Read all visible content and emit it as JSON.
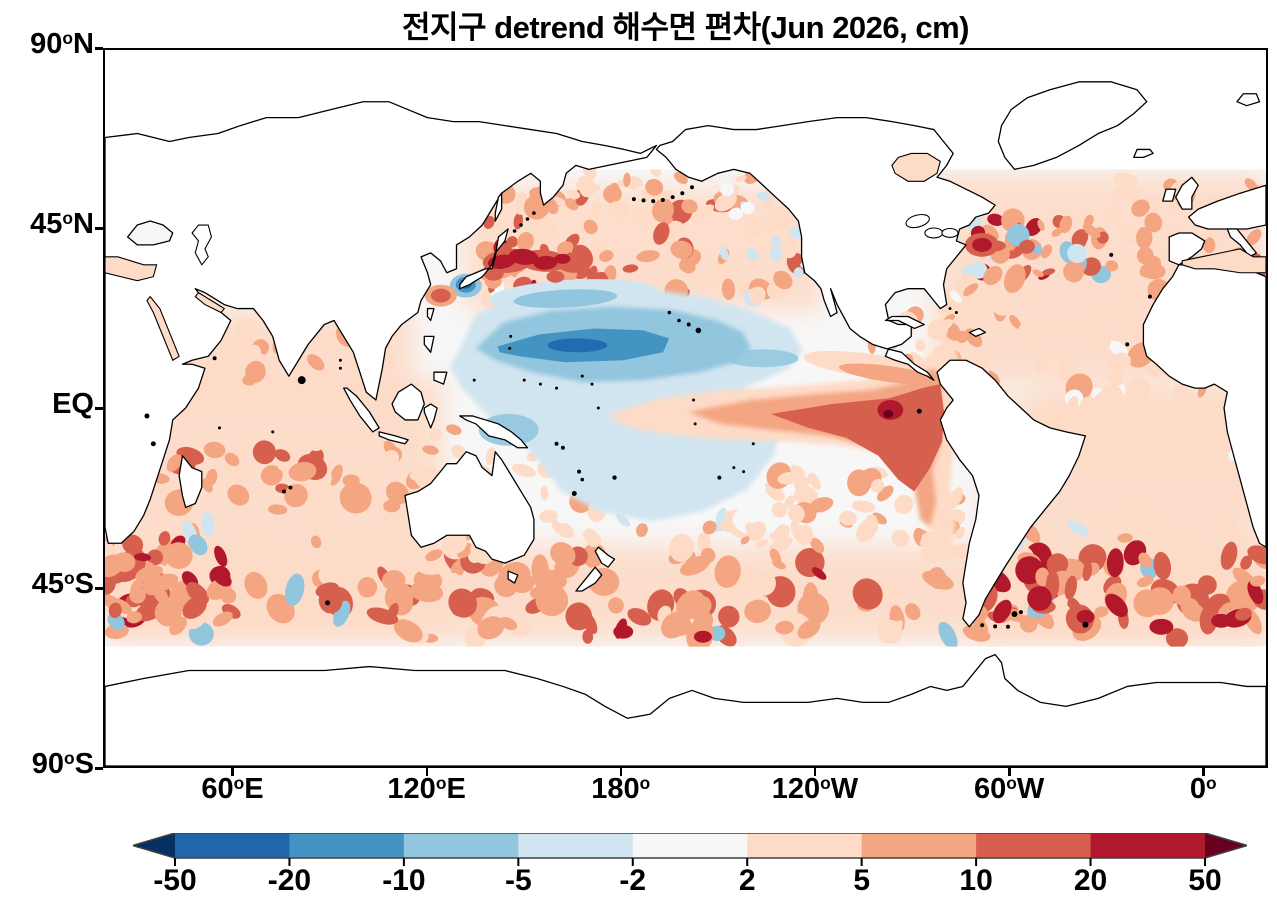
{
  "title": "전지구 detrend 해수면 편차(Jun 2026, cm)",
  "axes": {
    "lat_ticks": [
      {
        "label": "90°N",
        "lat": 90
      },
      {
        "label": "45°N",
        "lat": 45
      },
      {
        "label": "EQ",
        "lat": 0
      },
      {
        "label": "45°S",
        "lat": -45
      },
      {
        "label": "90°S",
        "lat": -90
      }
    ],
    "lon_ticks": [
      {
        "label": "60°E",
        "lon": 60
      },
      {
        "label": "120°E",
        "lon": 120
      },
      {
        "label": "180°",
        "lon": 180
      },
      {
        "label": "120°W",
        "lon": 240
      },
      {
        "label": "60°W",
        "lon": 300
      },
      {
        "label": "0°",
        "lon": 360
      }
    ]
  },
  "colorbar": {
    "levels": [
      -50,
      -20,
      -10,
      -5,
      -2,
      2,
      5,
      10,
      20,
      50
    ],
    "tick_labels": [
      "-50",
      "-20",
      "-10",
      "-5",
      "-2",
      "2",
      "5",
      "10",
      "20",
      "50"
    ],
    "colors": [
      "#2166ac",
      "#4393c3",
      "#92c5de",
      "#d1e5f0",
      "#f7f7f7",
      "#fddbc7",
      "#f4a582",
      "#d6604d",
      "#b2182b"
    ],
    "under_color": "#053061",
    "over_color": "#67001f",
    "outline_color": "#404040"
  },
  "chart_data": {
    "type": "heatmap",
    "subtype": "filled-contour world map of detrended sea-level anomaly",
    "title": "전지구 detrend 해수면 편차(Jun 2026, cm)",
    "date": "Jun 2026",
    "units": "cm",
    "projection": "equirectangular, Pacific-centered",
    "lon_range_deg_east": [
      20,
      380
    ],
    "lat_range": [
      -90,
      90
    ],
    "data_coverage_lat": [
      -60,
      60
    ],
    "contour_levels_cm": [
      -50,
      -20,
      -10,
      -5,
      -2,
      2,
      5,
      10,
      20,
      50
    ],
    "legend_position": "horizontal colorbar below map",
    "grid": false,
    "features": [
      {
        "region": "Kuroshio extension east of Japan",
        "lon_e": [
          140,
          158
        ],
        "lat": [
          32,
          40
        ],
        "anomaly_cm": 25
      },
      {
        "region": "Spot south of Japan / East China Sea edge",
        "lon_e": [
          130,
          134
        ],
        "lat": [
          30,
          34
        ],
        "anomaly_cm": -25
      },
      {
        "region": "West-central North Pacific core band",
        "lon_e": [
          140,
          182
        ],
        "lat": [
          8,
          18
        ],
        "anomaly_cm": -14
      },
      {
        "region": "Broad tropical NW Pacific negative pool",
        "lon_e": [
          128,
          215
        ],
        "lat": [
          -2,
          28
        ],
        "anomaly_cm": -4
      },
      {
        "region": "South-central tropical Pacific negative",
        "lon_e": [
          160,
          235
        ],
        "lat": [
          -24,
          0
        ],
        "anomaly_cm": -3
      },
      {
        "region": "Equatorial Pacific El Nino tongue",
        "lon_e": [
          180,
          280
        ],
        "lat": [
          -6,
          6
        ],
        "anomaly_cm": 8
      },
      {
        "region": "Far-eastern equatorial Pacific wedge at coast",
        "lon_e": [
          235,
          285
        ],
        "lat": [
          -16,
          10
        ],
        "anomaly_cm": 15
      },
      {
        "region": "Core near Galapagos",
        "lon_e": [
          268,
          276
        ],
        "lat": [
          -4,
          2
        ],
        "anomaly_cm": 45
      },
      {
        "region": "Gulf Stream / NW Atlantic mottled positive",
        "lon_e": [
          288,
          312
        ],
        "lat": [
          35,
          45
        ],
        "anomaly_cm": 12
      },
      {
        "region": "North Atlantic subtropics",
        "lon_e": [
          280,
          360
        ],
        "lat": [
          10,
          35
        ],
        "anomaly_cm": 3
      },
      {
        "region": "Indian Ocean broad positive",
        "lon_e": [
          30,
          120
        ],
        "lat": [
          -35,
          25
        ],
        "anomaly_cm": 3
      },
      {
        "region": "South Indian 8S-20S patches",
        "lon_e": [
          50,
          110
        ],
        "lat": [
          -20,
          -8
        ],
        "anomaly_cm": 7
      },
      {
        "region": "Southern Ocean circumpolar mottled positive",
        "lon_e": [
          20,
          380
        ],
        "lat": [
          -58,
          -35
        ],
        "anomaly_cm": 8
      },
      {
        "region": "South Atlantic 38S-55S strong patches",
        "lon_e": [
          300,
          380
        ],
        "lat": [
          -55,
          -38
        ],
        "anomaly_cm": 18
      },
      {
        "region": "North Pacific 25N-50N mottled positive",
        "lon_e": [
          150,
          235
        ],
        "lat": [
          25,
          50
        ],
        "anomaly_cm": 5
      },
      {
        "region": "No data poleward of about 60N / 60S",
        "lon_e": [
          20,
          380
        ],
        "lat": [
          -90,
          -60
        ],
        "anomaly_cm": null
      }
    ]
  }
}
